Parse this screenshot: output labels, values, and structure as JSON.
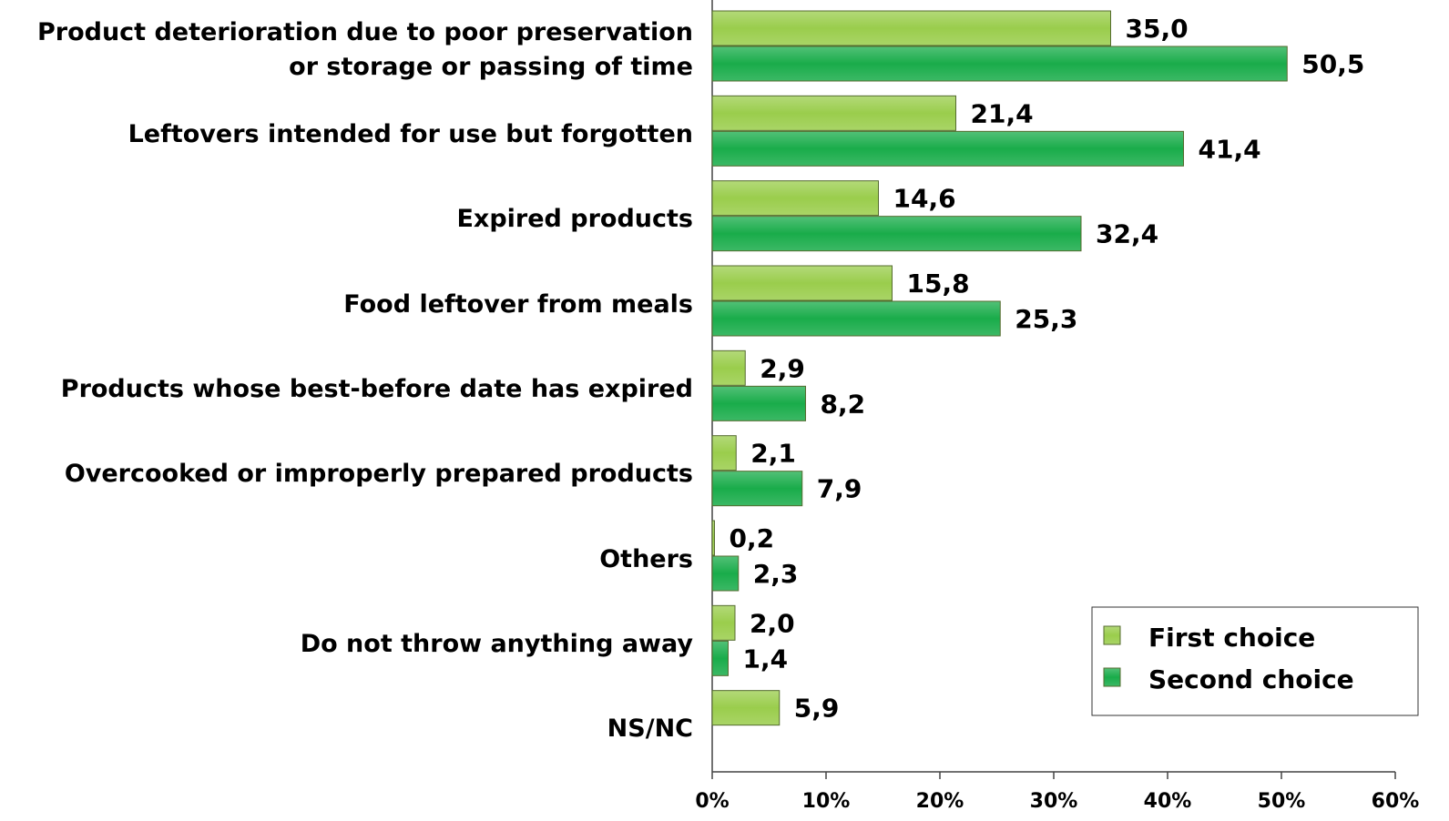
{
  "chart_data": {
    "type": "bar",
    "orientation": "horizontal",
    "categories": [
      "Product deterioration due to poor preservation or storage or passing of time",
      "Leftovers intended for use but forgotten",
      "Expired products",
      "Food leftover from meals",
      "Products whose best-before date has expired",
      "Overcooked or improperly prepared products",
      "Others",
      "Do not throw anything away",
      "NS/NC"
    ],
    "series": [
      {
        "name": "First choice",
        "color": "#9acd4c",
        "values": [
          35.0,
          21.4,
          14.6,
          15.8,
          2.9,
          2.1,
          0.2,
          2.0,
          5.9
        ],
        "value_labels": [
          "35,0",
          "21,4",
          "14,6",
          "15,8",
          "2,9",
          "2,1",
          "0,2",
          "2,0",
          "5,9"
        ]
      },
      {
        "name": "Second choice",
        "color": "#19ac4a",
        "values": [
          50.5,
          41.4,
          32.4,
          25.3,
          8.2,
          7.9,
          2.3,
          1.4,
          null
        ],
        "value_labels": [
          "50,5",
          "41,4",
          "32,4",
          "25,3",
          "8,2",
          "7,9",
          "2,3",
          "1,4",
          null
        ]
      }
    ],
    "xlim": [
      0,
      60
    ],
    "xticks": [
      {
        "value": 0,
        "label": "0%"
      },
      {
        "value": 10,
        "label": "10%"
      },
      {
        "value": 20,
        "label": "20%"
      },
      {
        "value": 30,
        "label": "30%"
      },
      {
        "value": 40,
        "label": "40%"
      },
      {
        "value": 50,
        "label": "50%"
      },
      {
        "value": 60,
        "label": "60%"
      }
    ],
    "legend": "bottom-right"
  }
}
